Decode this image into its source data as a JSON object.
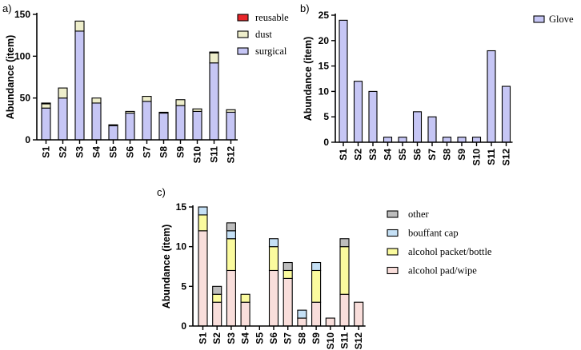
{
  "chart_data": [
    {
      "panel": "a)",
      "type": "bar",
      "stacked": true,
      "ylabel": "Abundance (item)",
      "xlabel": "",
      "ylim": [
        0,
        150
      ],
      "yticks": [
        0,
        50,
        100,
        150
      ],
      "categories": [
        "S1",
        "S2",
        "S3",
        "S4",
        "S5",
        "S6",
        "S7",
        "S8",
        "S9",
        "S10",
        "S11",
        "S12"
      ],
      "series": [
        {
          "name": "surgical",
          "color": "#c6c6f5",
          "values": [
            38,
            50,
            130,
            44,
            17,
            32,
            46,
            32,
            41,
            34,
            92,
            33
          ]
        },
        {
          "name": "dust",
          "color": "#eeeecb",
          "values": [
            5,
            12,
            12,
            6,
            1,
            2,
            6,
            1,
            7,
            3,
            12,
            3
          ]
        },
        {
          "name": "reusable",
          "color": "#e8262a",
          "values": [
            1,
            0,
            0,
            0,
            0,
            0,
            0,
            0,
            0,
            0,
            1,
            0
          ]
        }
      ],
      "legend": [
        "reusable",
        "dust",
        "surgical"
      ]
    },
    {
      "panel": "b)",
      "type": "bar",
      "ylabel": "Abundance (item)",
      "xlabel": "",
      "ylim": [
        0,
        25
      ],
      "yticks": [
        0,
        5,
        10,
        15,
        20,
        25
      ],
      "categories": [
        "S1",
        "S2",
        "S3",
        "S4",
        "S5",
        "S6",
        "S7",
        "S8",
        "S9",
        "S10",
        "S11",
        "S12"
      ],
      "series": [
        {
          "name": "Glove",
          "color": "#c6c6f5",
          "values": [
            24,
            12,
            10,
            1,
            1,
            6,
            5,
            1,
            1,
            1,
            18,
            11
          ]
        }
      ],
      "legend": [
        "Glove"
      ]
    },
    {
      "panel": "c)",
      "type": "bar",
      "stacked": true,
      "ylabel": "Abundance (item)",
      "xlabel": "",
      "ylim": [
        0,
        15
      ],
      "yticks": [
        0,
        5,
        10,
        15
      ],
      "categories": [
        "S1",
        "S2",
        "S3",
        "S4",
        "S5",
        "S6",
        "S7",
        "S8",
        "S9",
        "S10",
        "S11",
        "S12"
      ],
      "series": [
        {
          "name": "alcohol pad/wipe",
          "color": "#f9dedb",
          "values": [
            12,
            3,
            7,
            3,
            0,
            7,
            6,
            1,
            3,
            1,
            4,
            3
          ]
        },
        {
          "name": "alcohol packet/bottle",
          "color": "#fbfb9e",
          "values": [
            2,
            1,
            4,
            1,
            0,
            3,
            1,
            0,
            4,
            0,
            6,
            0
          ]
        },
        {
          "name": "bouffant cap",
          "color": "#c5e0f5",
          "values": [
            1,
            0,
            1,
            0,
            0,
            1,
            0,
            1,
            1,
            0,
            0,
            0
          ]
        },
        {
          "name": "other",
          "color": "#bdbdbd",
          "values": [
            0,
            1,
            1,
            0,
            0,
            0,
            1,
            0,
            0,
            0,
            1,
            0
          ]
        }
      ],
      "legend": [
        "other",
        "bouffant cap",
        "alcohol packet/bottle",
        "alcohol pad/wipe"
      ]
    }
  ]
}
